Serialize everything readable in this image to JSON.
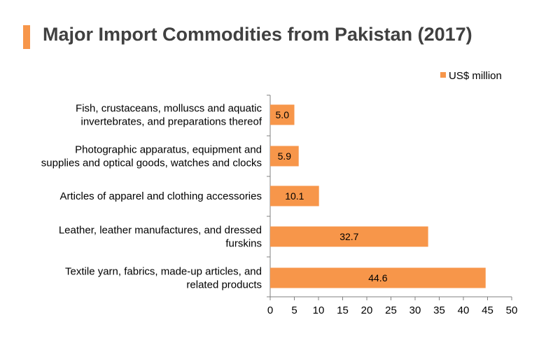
{
  "page": {
    "title": "Major Import Commodities from Pakistan (2017)",
    "accent_color": "#F7964A"
  },
  "chart_data": {
    "type": "bar",
    "orientation": "horizontal",
    "categories": [
      [
        "Fish, crustaceans, molluscs and aquatic",
        "invertebrates, and preparations thereof"
      ],
      [
        "Photographic apparatus, equipment and",
        "supplies and optical goods, watches and clocks"
      ],
      [
        "Articles of apparel and clothing accessories"
      ],
      [
        "Leather, leather manufactures, and dressed",
        "furskins"
      ],
      [
        "Textile yarn, fabrics, made-up articles, and",
        "related products"
      ]
    ],
    "series": [
      {
        "name": "US$ million",
        "values": [
          5.0,
          5.9,
          10.1,
          32.7,
          44.6
        ],
        "color": "#F7964A"
      }
    ],
    "data_labels": [
      "5.0",
      "5.9",
      "10.1",
      "32.7",
      "44.6"
    ],
    "xlim": [
      0,
      50
    ],
    "xticks": [
      0,
      5,
      10,
      15,
      20,
      25,
      30,
      35,
      40,
      45,
      50
    ],
    "legend_position": "top-right",
    "grid": false
  }
}
